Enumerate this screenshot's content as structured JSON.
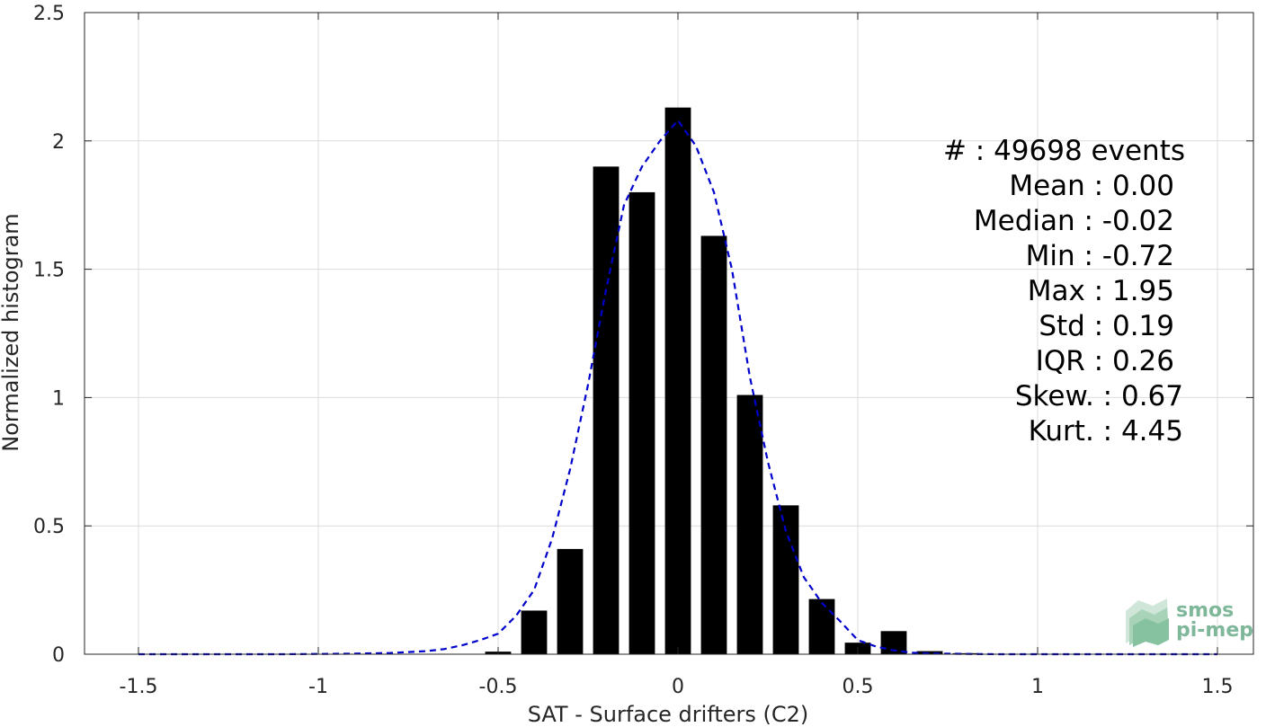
{
  "chart_data": {
    "type": "bar",
    "xlabel": "SAT - Surface drifters (C2)",
    "ylabel": "Normalized histogram",
    "xlim": [
      -1.65,
      1.6
    ],
    "ylim": [
      0,
      2.5
    ],
    "xticks": [
      -1.5,
      -1,
      -0.5,
      0,
      0.5,
      1,
      1.5
    ],
    "xtick_labels": [
      "-1.5",
      "-1",
      "-0.5",
      "0",
      "0.5",
      "1",
      "1.5"
    ],
    "yticks": [
      0,
      0.5,
      1,
      1.5,
      2,
      2.5
    ],
    "ytick_labels": [
      "0",
      "0.5",
      "1",
      "1.5",
      "2",
      "2.5"
    ],
    "grid": true,
    "bar_width": 0.072,
    "bars": {
      "x": [
        -0.5,
        -0.4,
        -0.3,
        -0.2,
        -0.1,
        0.0,
        0.1,
        0.2,
        0.3,
        0.4,
        0.5,
        0.6,
        0.7,
        0.8
      ],
      "values": [
        0.01,
        0.17,
        0.41,
        1.9,
        1.8,
        2.13,
        1.63,
        1.01,
        0.58,
        0.215,
        0.045,
        0.09,
        0.012,
        0.004
      ],
      "color": "#000000"
    },
    "fit_curve": {
      "style": "dashed",
      "color": "#0000cc",
      "x": [
        -1.5,
        -1.3,
        -1.1,
        -0.9,
        -0.8,
        -0.7,
        -0.65,
        -0.6,
        -0.55,
        -0.5,
        -0.45,
        -0.4,
        -0.35,
        -0.3,
        -0.25,
        -0.2,
        -0.15,
        -0.1,
        -0.05,
        0.0,
        0.05,
        0.1,
        0.15,
        0.2,
        0.25,
        0.3,
        0.35,
        0.4,
        0.45,
        0.5,
        0.55,
        0.6,
        0.65,
        0.7,
        0.8,
        0.9,
        1.0,
        1.2,
        1.5
      ],
      "y": [
        0.0,
        0.0,
        0.0,
        0.002,
        0.005,
        0.012,
        0.02,
        0.035,
        0.055,
        0.08,
        0.15,
        0.25,
        0.45,
        0.72,
        1.05,
        1.42,
        1.75,
        1.9,
        2.0,
        2.08,
        1.98,
        1.8,
        1.5,
        1.08,
        0.75,
        0.48,
        0.3,
        0.2,
        0.13,
        0.055,
        0.03,
        0.015,
        0.006,
        0.003,
        0.001,
        0.0,
        0.0,
        0.0,
        0.0
      ]
    }
  },
  "stats": [
    {
      "label": "#  : 49698 events"
    },
    {
      "label": "Mean : 0.00"
    },
    {
      "label": "Median : -0.02"
    },
    {
      "label": "Min : -0.72"
    },
    {
      "label": "Max : 1.95"
    },
    {
      "label": "Std : 0.19"
    },
    {
      "label": "IQR : 0.26"
    },
    {
      "label": "Skew. : 0.67"
    },
    {
      "label": "Kurt. : 4.45"
    }
  ],
  "logo": {
    "line1": "smos",
    "line2": "pi-mep"
  }
}
